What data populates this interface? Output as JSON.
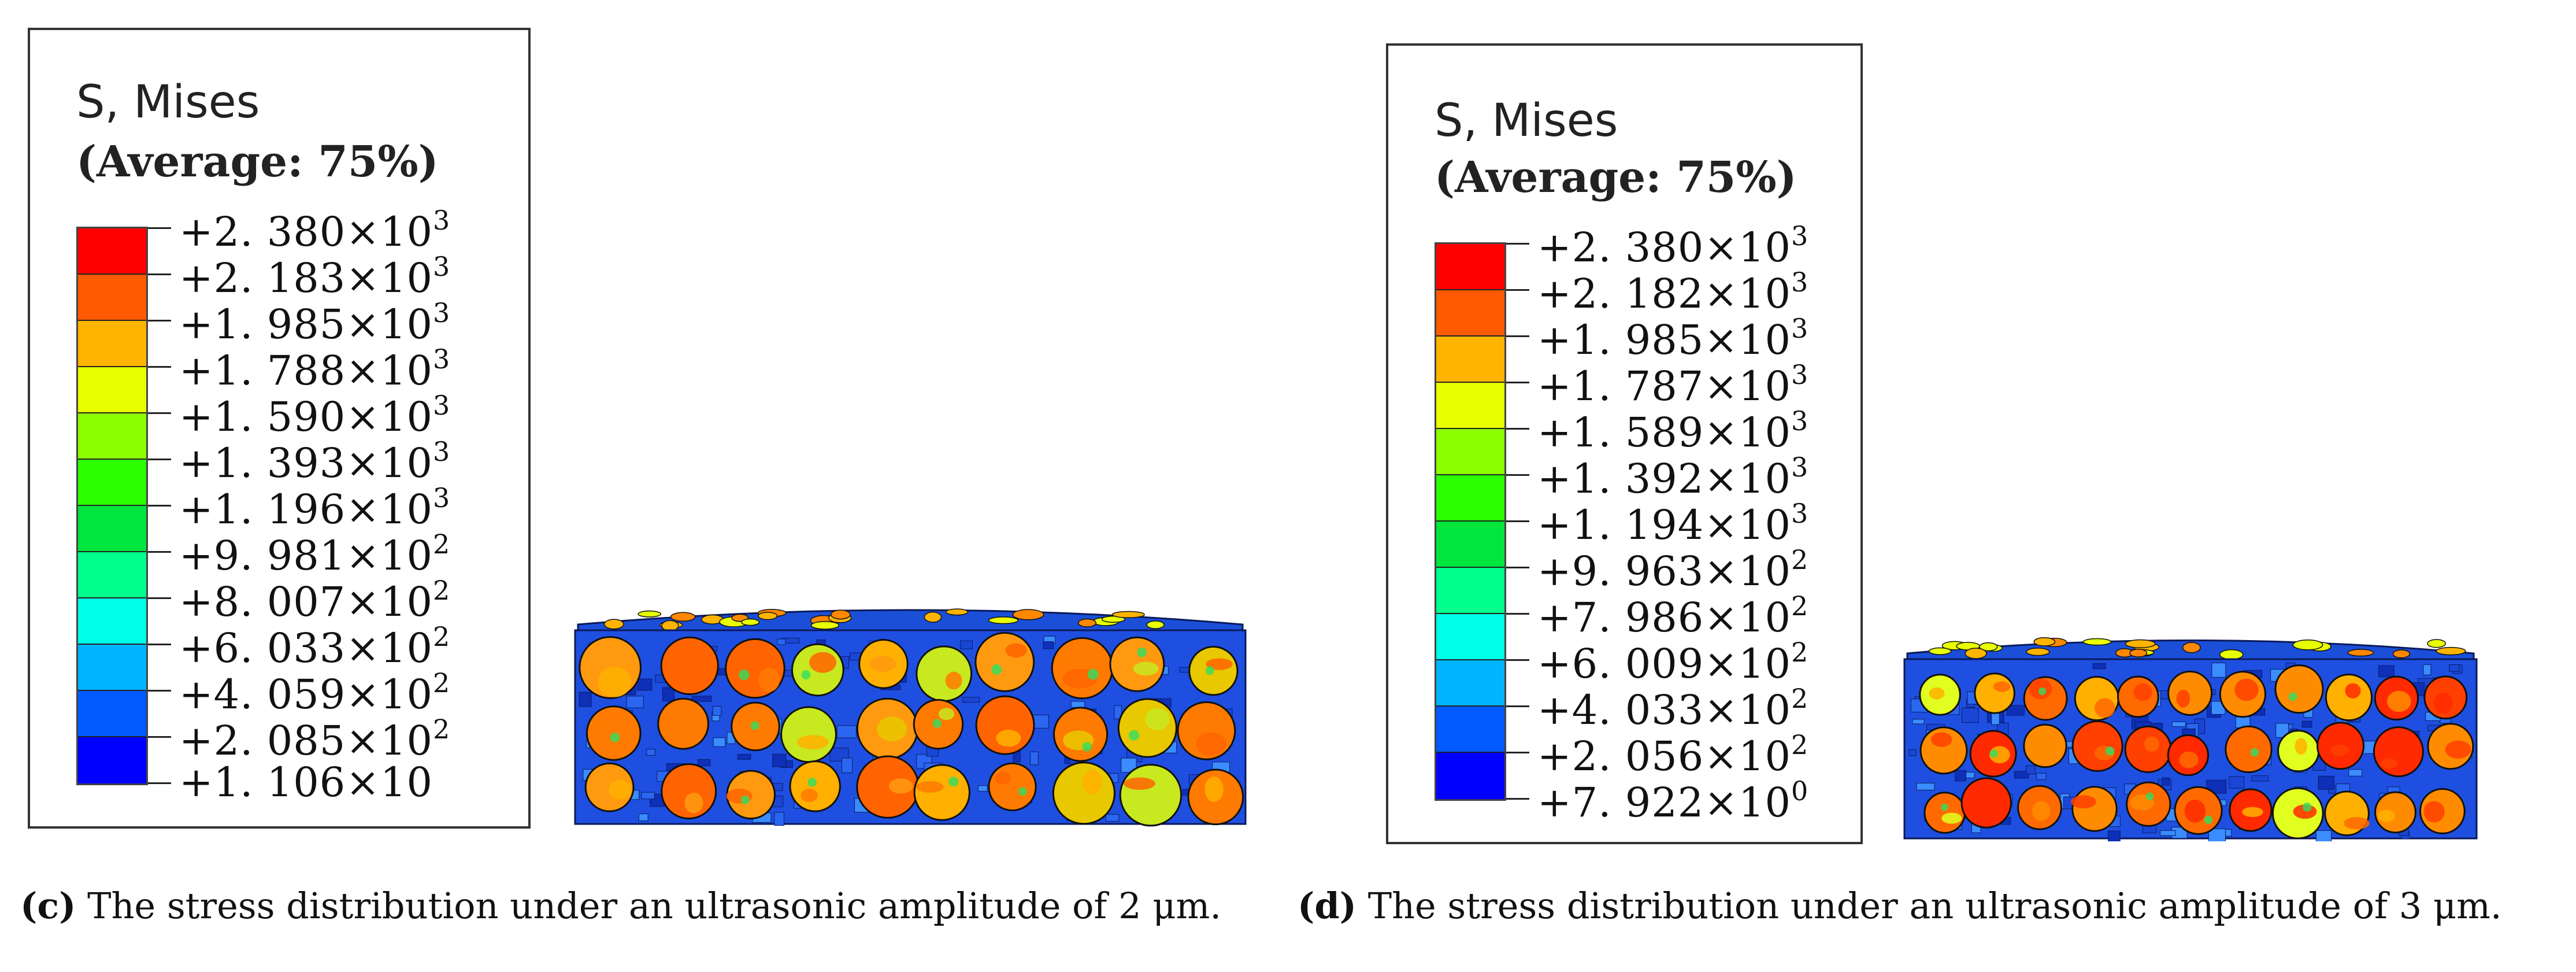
{
  "panels": [
    {
      "id": "c",
      "legend": {
        "title": "S, Mises",
        "subtitle": "(Average: 75%)",
        "colors": [
          "#ff0000",
          "#ff5a00",
          "#ffb400",
          "#e8ff00",
          "#8cff00",
          "#2cff00",
          "#00e63c",
          "#00ff8c",
          "#00ffe6",
          "#00b4ff",
          "#005aff",
          "#0000ff"
        ],
        "ticks": [
          {
            "m": "+2. 380",
            "e": "3"
          },
          {
            "m": "+2. 183",
            "e": "3"
          },
          {
            "m": "+1. 985",
            "e": "3"
          },
          {
            "m": "+1. 788",
            "e": "3"
          },
          {
            "m": "+1. 590",
            "e": "3"
          },
          {
            "m": "+1. 393",
            "e": "3"
          },
          {
            "m": "+1. 196",
            "e": "3"
          },
          {
            "m": "+9. 981",
            "e": "2"
          },
          {
            "m": "+8. 007",
            "e": "2"
          },
          {
            "m": "+6. 033",
            "e": "2"
          },
          {
            "m": "+4. 059",
            "e": "2"
          },
          {
            "m": "+2. 085",
            "e": "2"
          },
          {
            "m": "+1. 106",
            "e": ""
          }
        ]
      },
      "caption": {
        "label": "(c)",
        "text": " The stress distribution under an ultrasonic amplitude of 2 μm."
      }
    },
    {
      "id": "d",
      "legend": {
        "title": "S, Mises",
        "subtitle": "(Average: 75%)",
        "colors": [
          "#ff0000",
          "#ff5a00",
          "#ffb400",
          "#e8ff00",
          "#8cff00",
          "#2cff00",
          "#00e63c",
          "#00ff8c",
          "#00ffe6",
          "#00b4ff",
          "#005aff",
          "#0000ff"
        ],
        "ticks": [
          {
            "m": "+2. 380",
            "e": "3"
          },
          {
            "m": "+2. 182",
            "e": "3"
          },
          {
            "m": "+1. 985",
            "e": "3"
          },
          {
            "m": "+1. 787",
            "e": "3"
          },
          {
            "m": "+1. 589",
            "e": "3"
          },
          {
            "m": "+1. 392",
            "e": "3"
          },
          {
            "m": "+1. 194",
            "e": "3"
          },
          {
            "m": "+9. 963",
            "e": "2"
          },
          {
            "m": "+7. 986",
            "e": "2"
          },
          {
            "m": "+6. 009",
            "e": "2"
          },
          {
            "m": "+4. 033",
            "e": "2"
          },
          {
            "m": "+2. 056",
            "e": "2"
          },
          {
            "m": "+7. 922",
            "e": "0"
          }
        ]
      },
      "caption": {
        "label": "(d)",
        "text": " The stress distribution under an ultrasonic amplitude of 3 μm."
      }
    }
  ],
  "times_symbol": "×",
  "base": "10"
}
